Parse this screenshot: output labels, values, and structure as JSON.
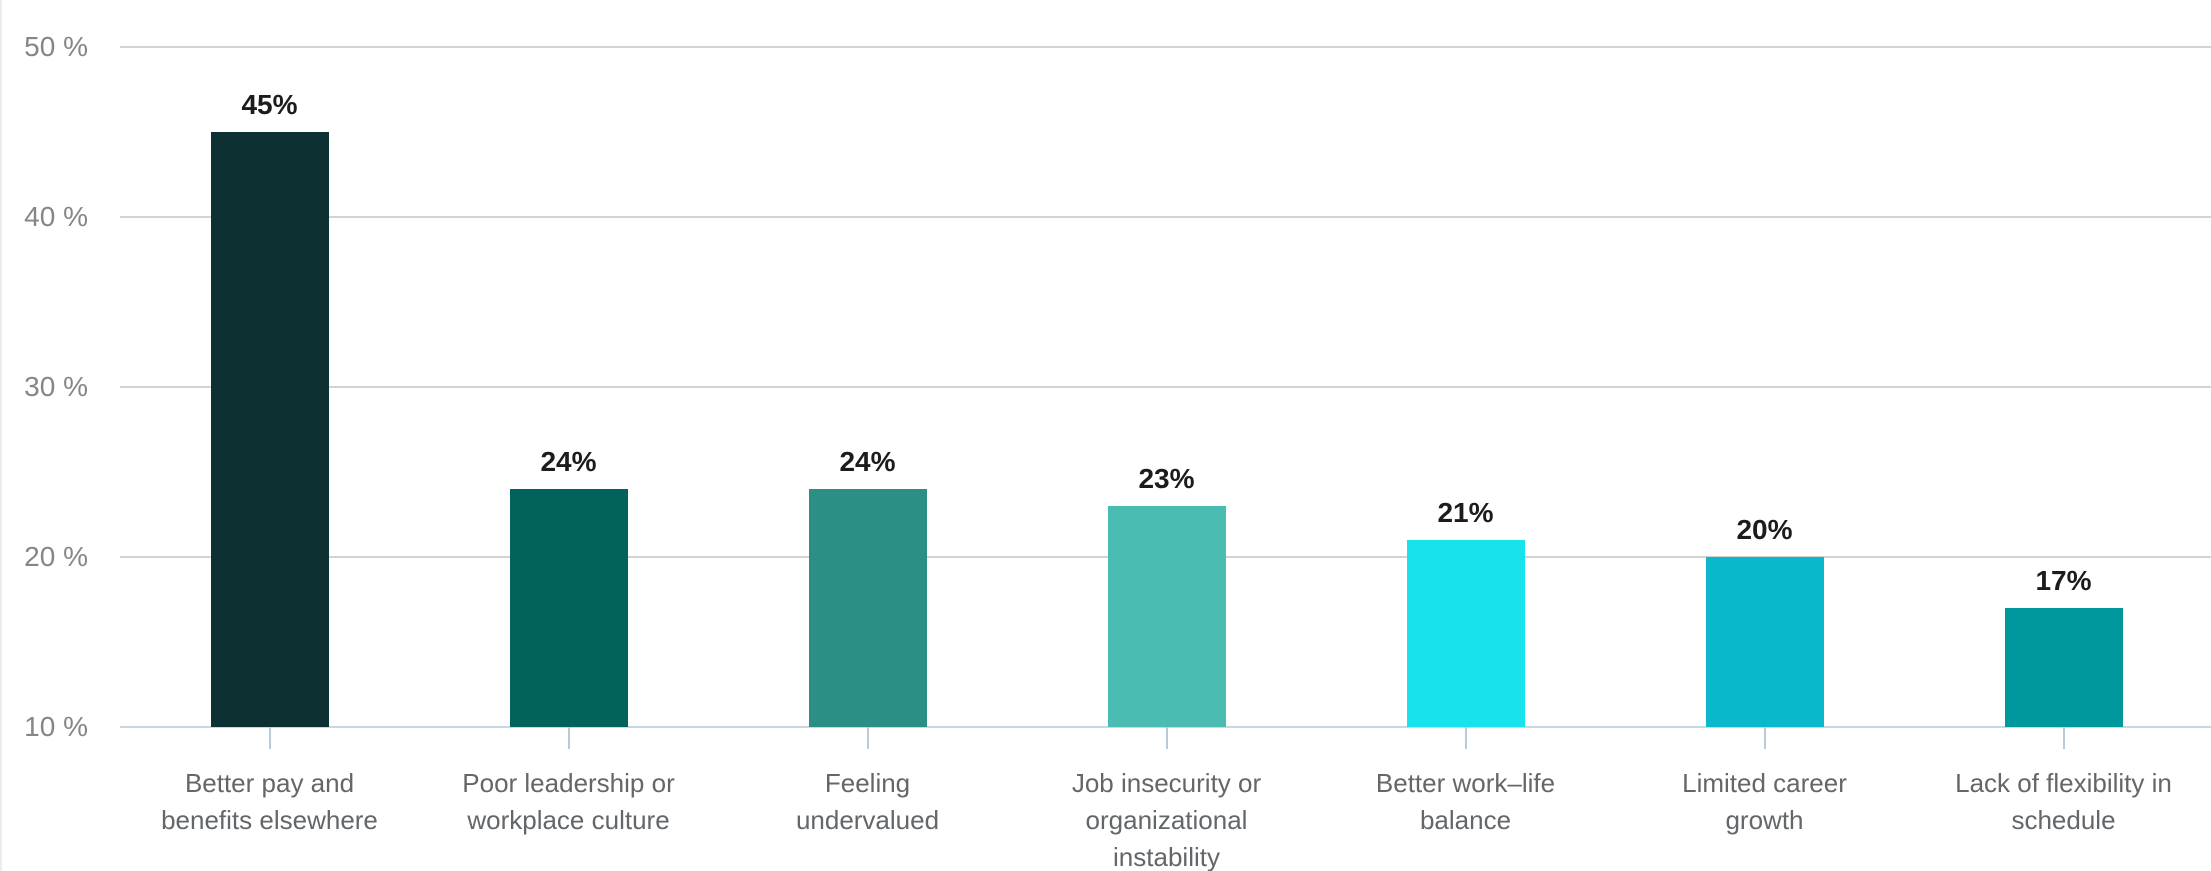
{
  "chart_data": {
    "type": "bar",
    "title": "",
    "xlabel": "",
    "ylabel": "",
    "categories": [
      "Better pay and benefits elsewhere",
      "Poor leadership or workplace culture",
      "Feeling undervalued",
      "Job insecurity or organizational instability",
      "Better work–life balance",
      "Limited career growth",
      "Lack of flexibility in schedule"
    ],
    "category_lines": [
      [
        "Better pay and",
        "benefits elsewhere"
      ],
      [
        "Poor leadership or",
        "workplace culture"
      ],
      [
        "Feeling",
        "undervalued"
      ],
      [
        "Job insecurity or",
        "organizational",
        "instability"
      ],
      [
        "Better work–life",
        "balance"
      ],
      [
        "Limited career",
        "growth"
      ],
      [
        "Lack of flexibility in",
        "schedule"
      ]
    ],
    "values": [
      45,
      24,
      24,
      23,
      21,
      20,
      17
    ],
    "value_labels": [
      "45%",
      "24%",
      "24%",
      "23%",
      "21%",
      "20%",
      "17%"
    ],
    "bar_colors": [
      "#0d3032",
      "#02635c",
      "#2b8f86",
      "#4bbcb1",
      "#18e2ec",
      "#09b9cb",
      "#00989d"
    ],
    "ylim": [
      10,
      52
    ],
    "yticks": [
      50,
      40,
      30,
      20,
      10
    ],
    "ytick_labels": [
      "50 %",
      "40 %",
      "30 %",
      "20 %",
      "10 %"
    ],
    "baseline_value": 10,
    "grid": "horizontal",
    "legend": "none"
  },
  "colors": {
    "background": "#ffffff",
    "gridline": "#d3d3d3",
    "axis_baseline": "#c9d7e2",
    "xtick": "#b7cbdb",
    "ytick_label": "#868686",
    "value_label": "#1c1c1c",
    "category_label": "#63676a"
  }
}
